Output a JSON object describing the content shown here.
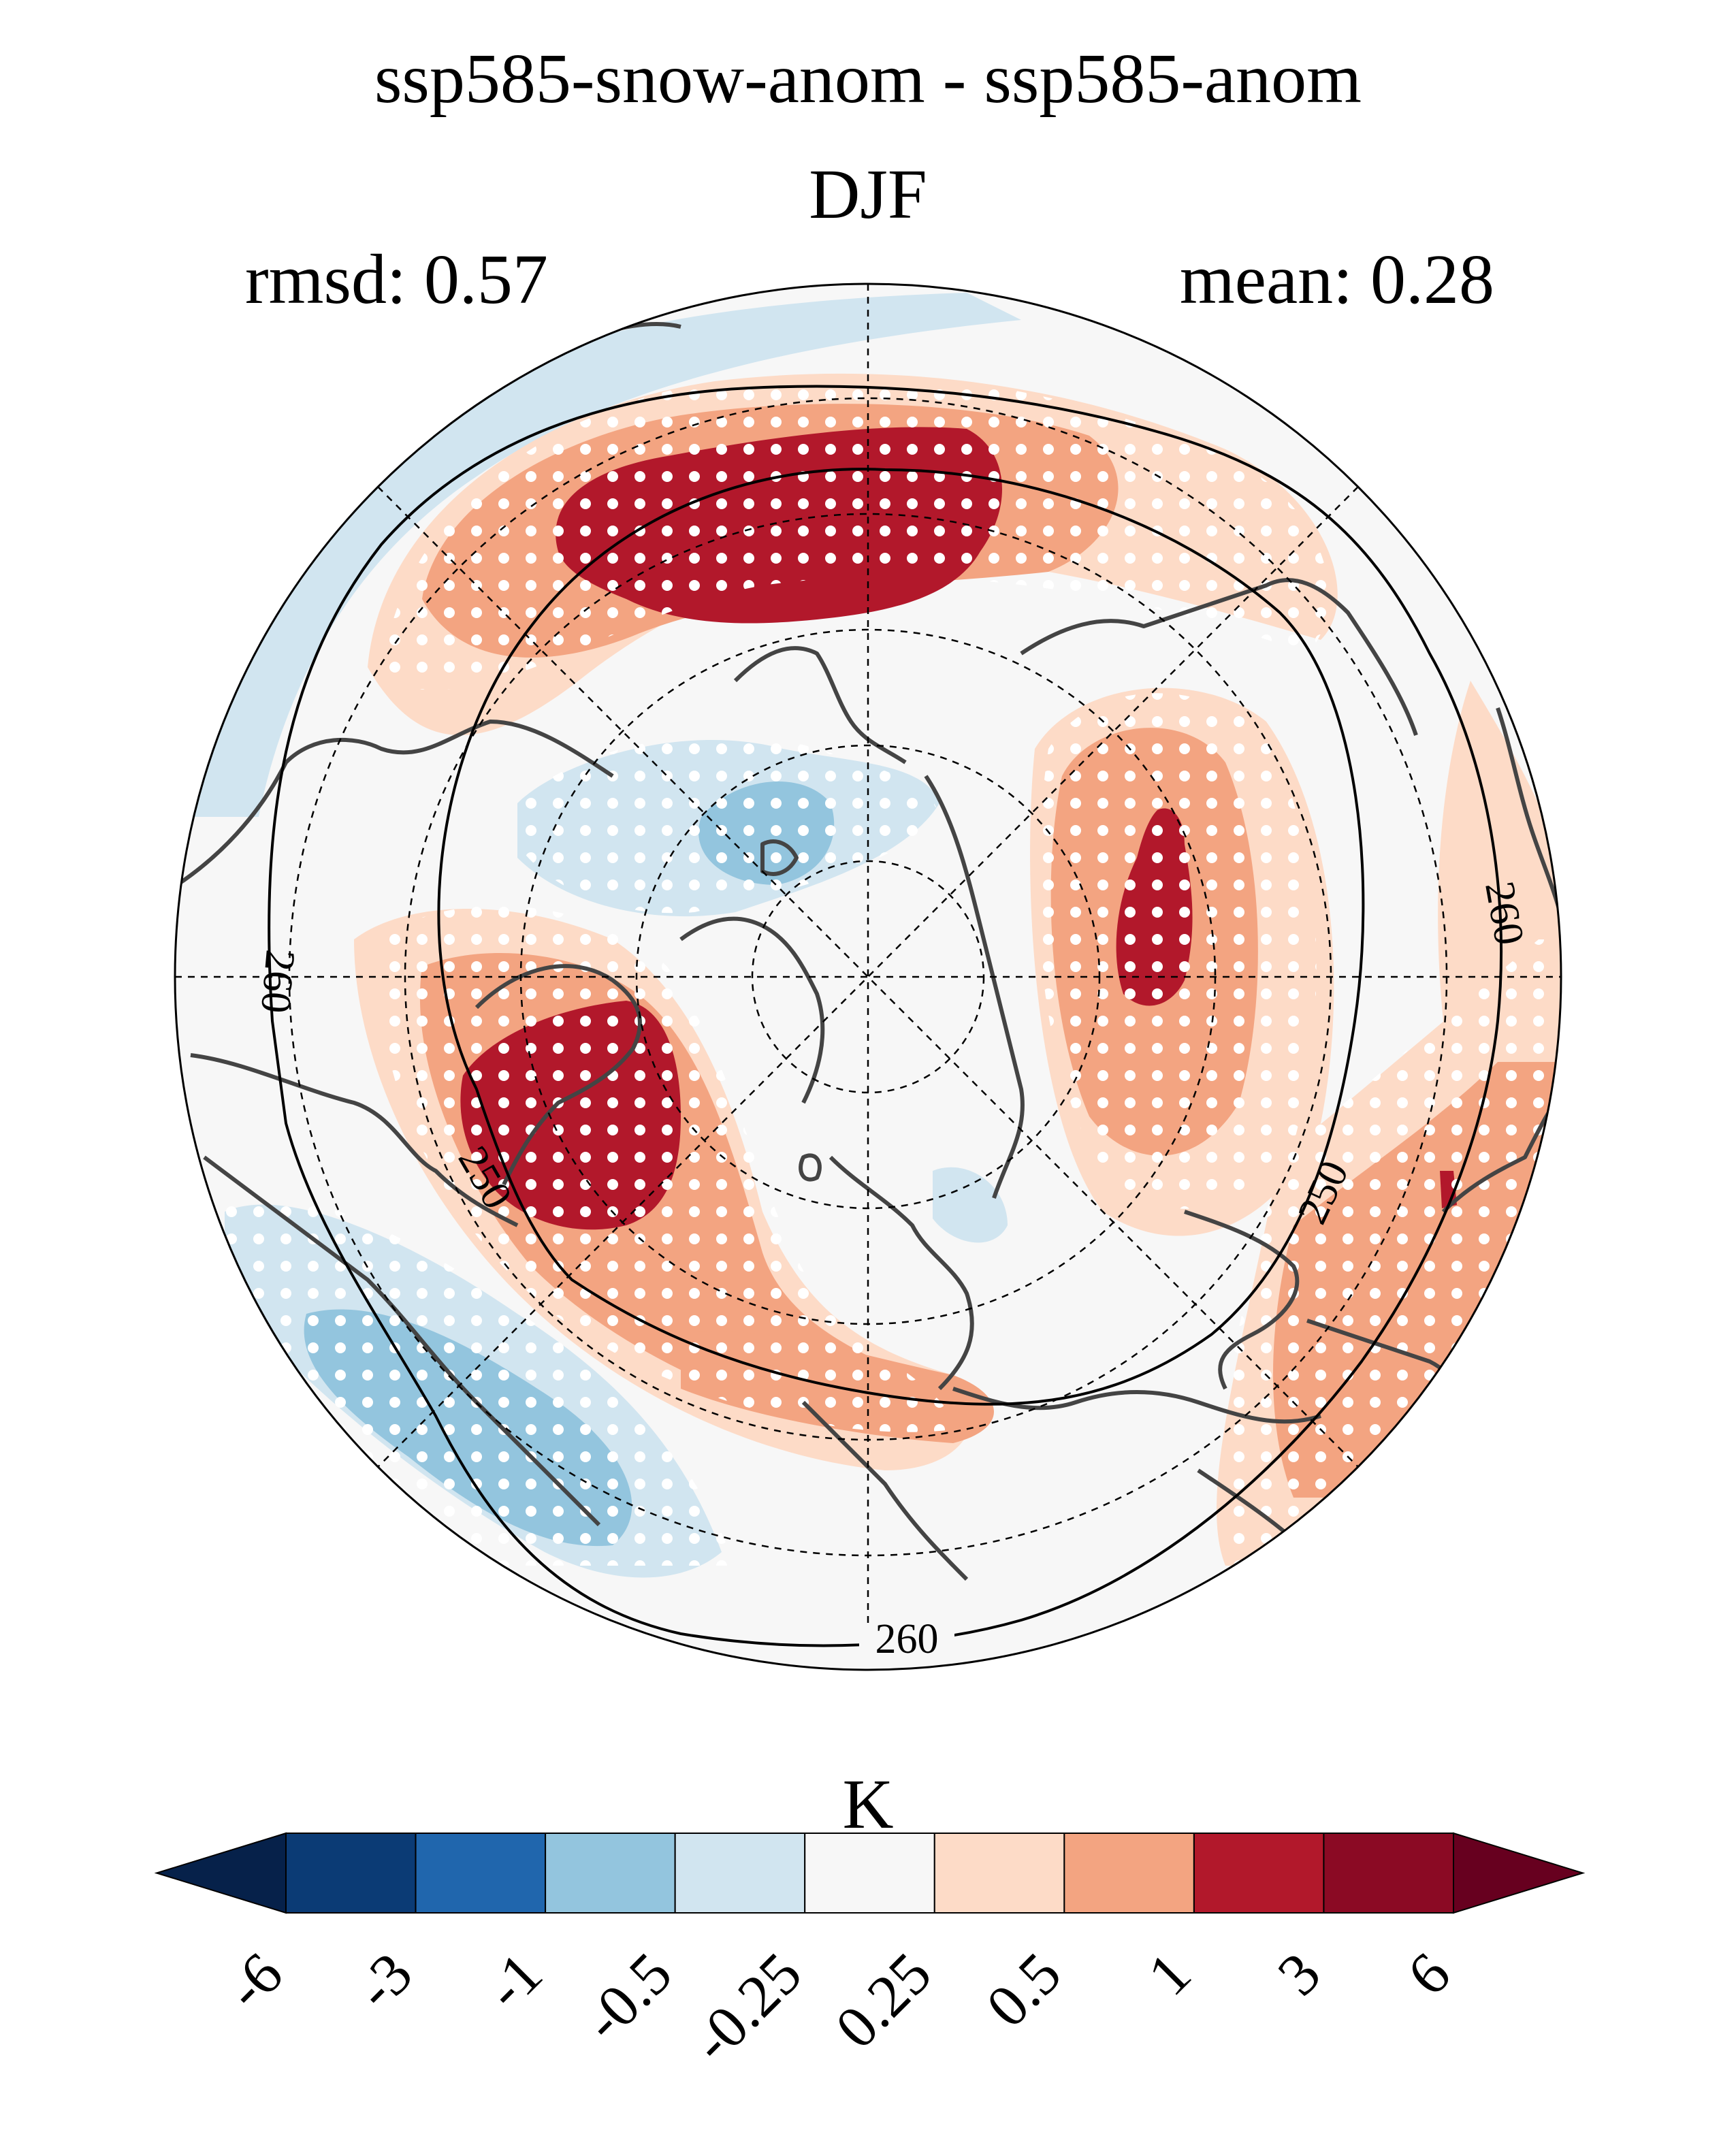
{
  "title": "ssp585-snow-anom - ssp585-anom",
  "season": "DJF",
  "rmsd_label": "rmsd: 0.57",
  "mean_label": "mean: 0.28",
  "colorbar": {
    "unit": "K",
    "ticks": [
      "-6",
      "-3",
      "-1",
      "-0.5",
      "-0.25",
      "0.25",
      "0.5",
      "1",
      "3",
      "6"
    ],
    "colors": [
      "#06214a",
      "#0b3b75",
      "#2066ad",
      "#93c5de",
      "#d1e5f0",
      "#f7f7f7",
      "#fddbc7",
      "#f3a481",
      "#b2182b",
      "#8b0a24",
      "#67001f"
    ]
  },
  "contour_labels": [
    "260",
    "260",
    "260",
    "250",
    "250"
  ],
  "colors": {
    "land_outline": "#444444",
    "contour": "#000000",
    "stipple": "#ffffff"
  }
}
